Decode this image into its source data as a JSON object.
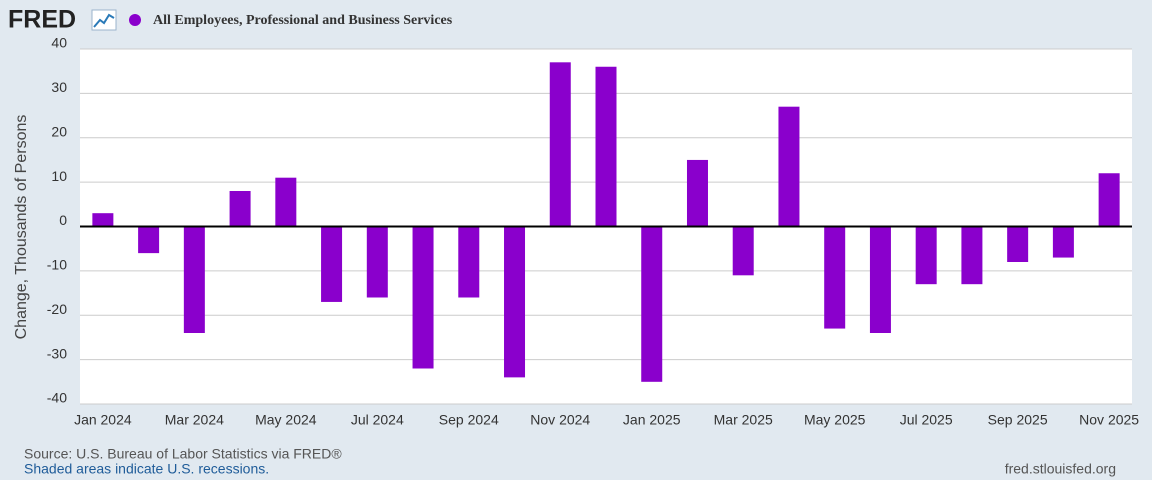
{
  "logo": "FRED",
  "chart_data": {
    "type": "bar",
    "series": [
      {
        "name": "All Employees, Professional and Business Services",
        "color": "#8a00cc",
        "values": [
          3,
          -6,
          -24,
          8,
          11,
          -17,
          -16,
          -32,
          -16,
          -34,
          37,
          36,
          -35,
          15,
          -11,
          27,
          -23,
          -24,
          -13,
          -13,
          -8,
          -7,
          12
        ]
      }
    ],
    "categories": [
      "Jan 2024",
      null,
      "Mar 2024",
      null,
      "May 2024",
      null,
      "Jul 2024",
      null,
      "Sep 2024",
      null,
      "Nov 2024",
      null,
      "Jan 2025",
      null,
      "Mar 2025",
      null,
      "May 2025",
      null,
      "Jul 2025",
      null,
      "Sep 2025",
      null,
      "Nov 2025"
    ],
    "y_label": "Change, Thousands of Persons",
    "ylim": [
      -40,
      40
    ],
    "yticks": [
      -40,
      -30,
      -20,
      -10,
      0,
      10,
      20,
      30,
      40
    ],
    "grid": true
  },
  "footer": {
    "source": "Source: U.S. Bureau of Labor Statistics via FRED®",
    "note": "Shaded areas indicate U.S. recessions.",
    "site": "fred.stlouisfed.org"
  }
}
